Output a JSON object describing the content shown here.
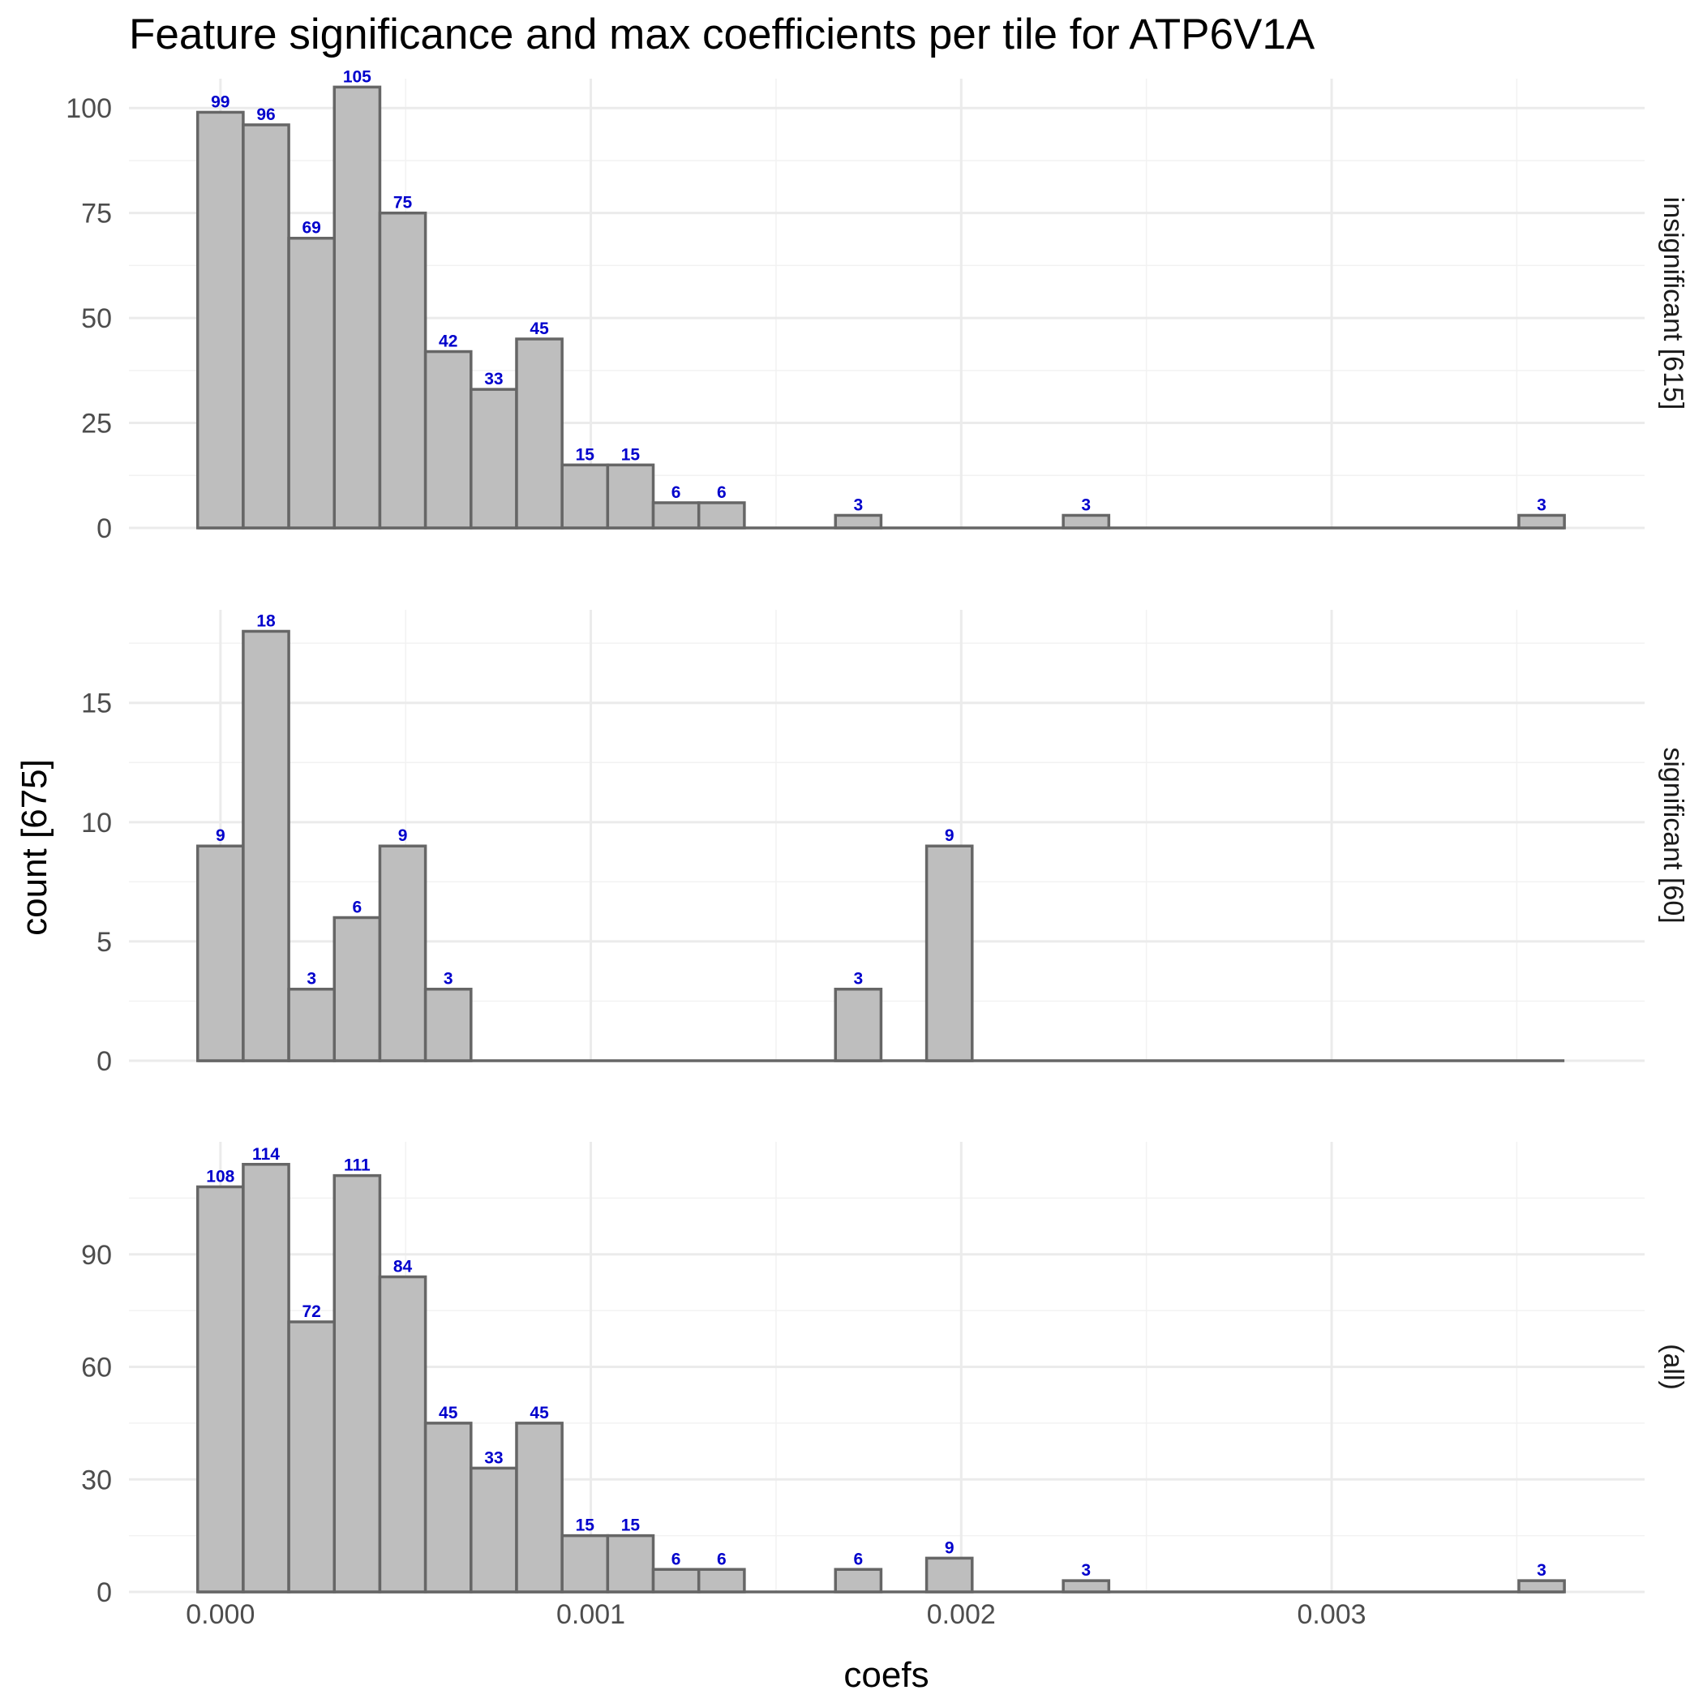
{
  "chart_data": {
    "type": "bar",
    "title": "Feature significance and max coefficients per tile for ATP6V1A",
    "xlabel": "coefs",
    "ylabel": "count [675]",
    "xlim": [
      -0.000247,
      0.003845
    ],
    "x_ticks": [
      0.0,
      0.001,
      0.002,
      0.003
    ],
    "x_tick_labels": [
      "0.000",
      "0.001",
      "0.002",
      "0.003"
    ],
    "bin_width": 0.000123,
    "grid": true,
    "bar_fill": "#bebebe",
    "bar_outline": "#666666",
    "label_color": "#0000cc",
    "panels": [
      {
        "label": "insignificant [615]",
        "ylim": [
          0,
          107
        ],
        "y_ticks": [
          0,
          25,
          50,
          75,
          100
        ],
        "bin_centers": [
          0.0,
          0.000123,
          0.000246,
          0.000369,
          0.000492,
          0.000615,
          0.000738,
          0.000861,
          0.000984,
          0.001107,
          0.00123,
          0.001353,
          0.001476,
          0.001599,
          0.001722,
          0.001845,
          0.001968,
          0.002091,
          0.002214,
          0.002337,
          0.00246,
          0.002583,
          0.002706,
          0.002829,
          0.002952,
          0.003075,
          0.003198,
          0.003321,
          0.003444,
          0.003567
        ],
        "values": [
          99,
          96,
          69,
          105,
          75,
          42,
          33,
          45,
          15,
          15,
          6,
          6,
          0,
          0,
          3,
          0,
          0,
          0,
          0,
          3,
          0,
          0,
          0,
          0,
          0,
          0,
          0,
          0,
          0,
          3
        ]
      },
      {
        "label": "significant [60]",
        "ylim": [
          0,
          18.9
        ],
        "y_ticks": [
          0,
          5,
          10,
          15
        ],
        "bin_centers": [
          0.0,
          0.000123,
          0.000246,
          0.000369,
          0.000492,
          0.000615,
          0.000738,
          0.000861,
          0.000984,
          0.001107,
          0.00123,
          0.001353,
          0.001476,
          0.001599,
          0.001722,
          0.001845,
          0.001968,
          0.002091,
          0.002214,
          0.002337,
          0.00246,
          0.002583,
          0.002706,
          0.002829,
          0.002952,
          0.003075,
          0.003198,
          0.003321,
          0.003444,
          0.003567
        ],
        "values": [
          9,
          18,
          3,
          6,
          9,
          3,
          0,
          0,
          0,
          0,
          0,
          0,
          0,
          0,
          3,
          0,
          9,
          0,
          0,
          0,
          0,
          0,
          0,
          0,
          0,
          0,
          0,
          0,
          0,
          0
        ]
      },
      {
        "label": "(all)",
        "ylim": [
          0,
          120
        ],
        "y_ticks": [
          0,
          30,
          60,
          90
        ],
        "bin_centers": [
          0.0,
          0.000123,
          0.000246,
          0.000369,
          0.000492,
          0.000615,
          0.000738,
          0.000861,
          0.000984,
          0.001107,
          0.00123,
          0.001353,
          0.001476,
          0.001599,
          0.001722,
          0.001845,
          0.001968,
          0.002091,
          0.002214,
          0.002337,
          0.00246,
          0.002583,
          0.002706,
          0.002829,
          0.002952,
          0.003075,
          0.003198,
          0.003321,
          0.003444,
          0.003567
        ],
        "values": [
          108,
          114,
          72,
          111,
          84,
          45,
          33,
          45,
          15,
          15,
          6,
          6,
          0,
          0,
          6,
          0,
          9,
          0,
          0,
          3,
          0,
          0,
          0,
          0,
          0,
          0,
          0,
          0,
          0,
          3
        ]
      }
    ]
  }
}
